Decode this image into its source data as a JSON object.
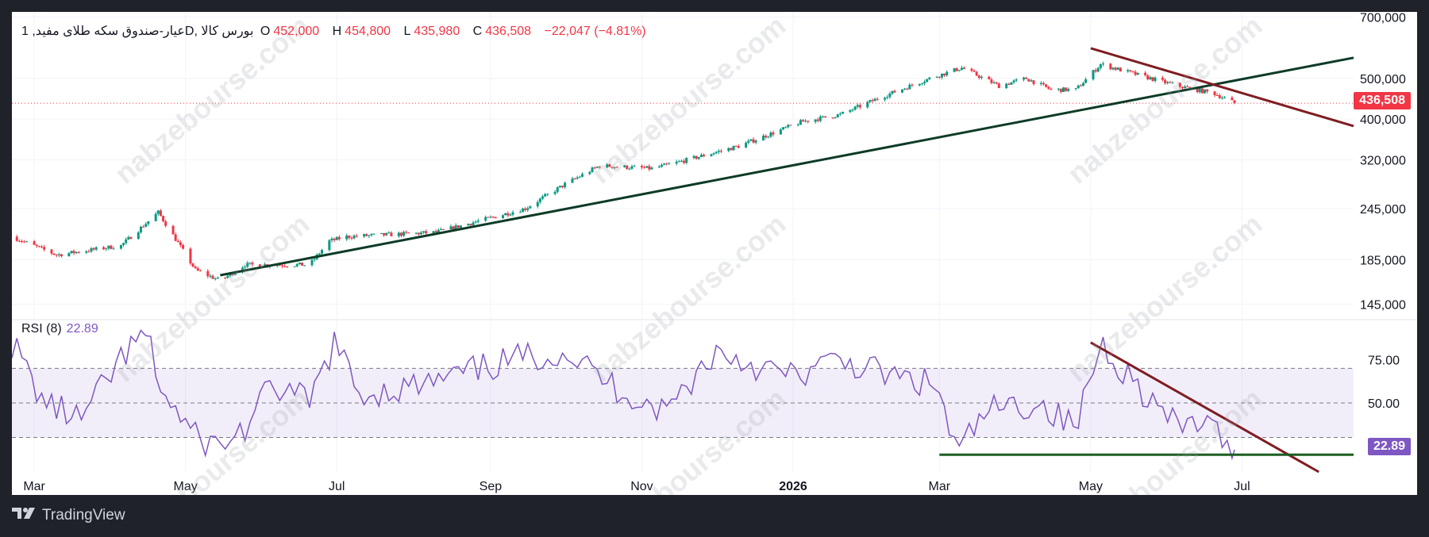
{
  "header": {
    "symbol": "عیار-صندوق سکه طلای مفید, 1D, بورس کالا",
    "open_label": "O",
    "open_value": "452,000",
    "high_label": "H",
    "high_value": "454,800",
    "low_label": "L",
    "low_value": "435,980",
    "close_label": "C",
    "close_value": "436,508",
    "change": "−22,047 (−4.81%)"
  },
  "rsi_legend": {
    "label": "RSI (8)",
    "value": "22.89"
  },
  "price_tag": "436,508",
  "rsi_tag": "22.89",
  "watermark": "nabzebourse.com",
  "footer": {
    "brand": "TradingView"
  },
  "colors": {
    "up": "#089981",
    "down": "#f23645",
    "rsi": "#7e57c2",
    "trend_up": "#0d3b26",
    "trend_down": "#7f1d22",
    "rsi_support": "#1b5e20",
    "rsi_tag": "#7e57c2",
    "price_tag": "#f23645"
  },
  "chart_data": [
    {
      "type": "candlestick",
      "title": "عیار-صندوق سکه طلای مفید, 1D, بورس کالا",
      "y_ticks": [
        700000,
        500000,
        400000,
        320000,
        245000,
        185000,
        145000
      ],
      "y_tick_labels": [
        "700,000",
        "500,000",
        "400,000",
        "320,000",
        "245,000",
        "185,000",
        "145,000"
      ],
      "ylim": [
        135000,
        720000
      ],
      "y_scale": "log",
      "x_tick_labels": [
        "Mar",
        "May",
        "Jul",
        "Sep",
        "Nov",
        "2026",
        "Mar",
        "May",
        "Jul"
      ],
      "x_tick_dates": [
        "2025-03-01",
        "2025-05-01",
        "2025-07-01",
        "2025-09-01",
        "2025-11-01",
        "2026-01-01",
        "2026-03-01",
        "2026-05-01",
        "2026-07-01"
      ],
      "x_range": [
        "2025-02-20",
        "2026-08-15"
      ],
      "price_anchors": [
        [
          "2025-02-20",
          210000
        ],
        [
          "2025-03-10",
          190000
        ],
        [
          "2025-04-05",
          200000
        ],
        [
          "2025-04-20",
          240000
        ],
        [
          "2025-05-05",
          175000
        ],
        [
          "2025-05-15",
          165000
        ],
        [
          "2025-05-25",
          180000
        ],
        [
          "2025-06-20",
          180000
        ],
        [
          "2025-06-28",
          205000
        ],
        [
          "2025-07-05",
          210000
        ],
        [
          "2025-08-10",
          215000
        ],
        [
          "2025-09-15",
          245000
        ],
        [
          "2025-10-01",
          280000
        ],
        [
          "2025-10-15",
          310000
        ],
        [
          "2025-11-05",
          305000
        ],
        [
          "2025-11-15",
          315000
        ],
        [
          "2025-12-10",
          345000
        ],
        [
          "2026-01-05",
          395000
        ],
        [
          "2026-01-20",
          410000
        ],
        [
          "2026-02-05",
          450000
        ],
        [
          "2026-02-25",
          500000
        ],
        [
          "2026-03-10",
          530000
        ],
        [
          "2026-03-25",
          480000
        ],
        [
          "2026-04-05",
          500000
        ],
        [
          "2026-04-15",
          470000
        ],
        [
          "2026-04-25",
          470000
        ],
        [
          "2026-05-05",
          540000
        ],
        [
          "2026-05-20",
          510000
        ],
        [
          "2026-06-05",
          480000
        ],
        [
          "2026-06-20",
          460000
        ],
        [
          "2026-06-28",
          436508
        ]
      ],
      "last_close": 436508,
      "trendlines": [
        {
          "name": "support",
          "from": [
            "2025-05-15",
            170000
          ],
          "to": [
            "2026-08-15",
            560000
          ]
        },
        {
          "name": "resistance",
          "from": [
            "2026-05-01",
            590000
          ],
          "to": [
            "2026-08-15",
            385000
          ]
        }
      ],
      "horizontal_line": 436508
    },
    {
      "type": "line",
      "title": "RSI (8)",
      "y_ticks": [
        75,
        50
      ],
      "y_tick_labels": [
        "75.00",
        "50.00"
      ],
      "band_levels": [
        70,
        50,
        30
      ],
      "ylim": [
        10,
        95
      ],
      "current_value": 22.89,
      "rsi_anchors": [
        [
          "2025-02-20",
          85
        ],
        [
          "2025-03-05",
          50
        ],
        [
          "2025-03-20",
          40
        ],
        [
          "2025-04-05",
          75
        ],
        [
          "2025-04-15",
          90
        ],
        [
          "2025-04-22",
          55
        ],
        [
          "2025-05-05",
          30
        ],
        [
          "2025-05-15",
          25
        ],
        [
          "2025-05-25",
          35
        ],
        [
          "2025-06-05",
          60
        ],
        [
          "2025-06-20",
          50
        ],
        [
          "2025-06-30",
          85
        ],
        [
          "2025-07-10",
          55
        ],
        [
          "2025-08-05",
          60
        ],
        [
          "2025-09-10",
          75
        ],
        [
          "2025-10-01",
          80
        ],
        [
          "2025-10-20",
          60
        ],
        [
          "2025-11-10",
          45
        ],
        [
          "2025-12-01",
          80
        ],
        [
          "2025-12-20",
          70
        ],
        [
          "2026-01-01",
          65
        ],
        [
          "2026-01-20",
          75
        ],
        [
          "2026-02-10",
          65
        ],
        [
          "2026-02-28",
          60
        ],
        [
          "2026-03-08",
          20
        ],
        [
          "2026-03-20",
          45
        ],
        [
          "2026-04-10",
          50
        ],
        [
          "2026-04-25",
          35
        ],
        [
          "2026-05-05",
          85
        ],
        [
          "2026-05-20",
          60
        ],
        [
          "2026-06-05",
          35
        ],
        [
          "2026-06-15",
          40
        ],
        [
          "2026-06-25",
          25
        ],
        [
          "2026-06-28",
          22.89
        ]
      ],
      "trendlines": [
        {
          "name": "rsi-resistance",
          "from": [
            "2026-05-01",
            85
          ],
          "to": [
            "2026-08-01",
            10
          ]
        },
        {
          "name": "rsi-support",
          "from": [
            "2026-03-01",
            20
          ],
          "to": [
            "2026-08-15",
            20
          ]
        }
      ]
    }
  ]
}
